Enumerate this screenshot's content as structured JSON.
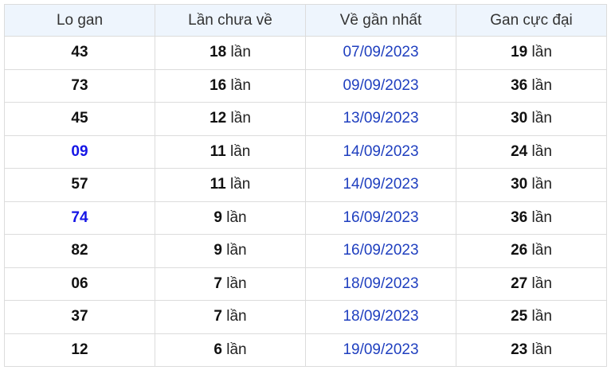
{
  "headers": [
    "Lo gan",
    "Lần chưa về",
    "Về gần nhất",
    "Gan cực đại"
  ],
  "unit": "lần",
  "colors": {
    "highlight": "#1515e6",
    "date": "#1f3fbf",
    "header_bg": "#eef5fd"
  },
  "rows": [
    {
      "num": "43",
      "highlight": false,
      "missed": "18",
      "last": "07/09/2023",
      "max": "19"
    },
    {
      "num": "73",
      "highlight": false,
      "missed": "16",
      "last": "09/09/2023",
      "max": "36"
    },
    {
      "num": "45",
      "highlight": false,
      "missed": "12",
      "last": "13/09/2023",
      "max": "30"
    },
    {
      "num": "09",
      "highlight": true,
      "missed": "11",
      "last": "14/09/2023",
      "max": "24"
    },
    {
      "num": "57",
      "highlight": false,
      "missed": "11",
      "last": "14/09/2023",
      "max": "30"
    },
    {
      "num": "74",
      "highlight": true,
      "missed": "9",
      "last": "16/09/2023",
      "max": "36"
    },
    {
      "num": "82",
      "highlight": false,
      "missed": "9",
      "last": "16/09/2023",
      "max": "26"
    },
    {
      "num": "06",
      "highlight": false,
      "missed": "7",
      "last": "18/09/2023",
      "max": "27"
    },
    {
      "num": "37",
      "highlight": false,
      "missed": "7",
      "last": "18/09/2023",
      "max": "25"
    },
    {
      "num": "12",
      "highlight": false,
      "missed": "6",
      "last": "19/09/2023",
      "max": "23"
    }
  ]
}
